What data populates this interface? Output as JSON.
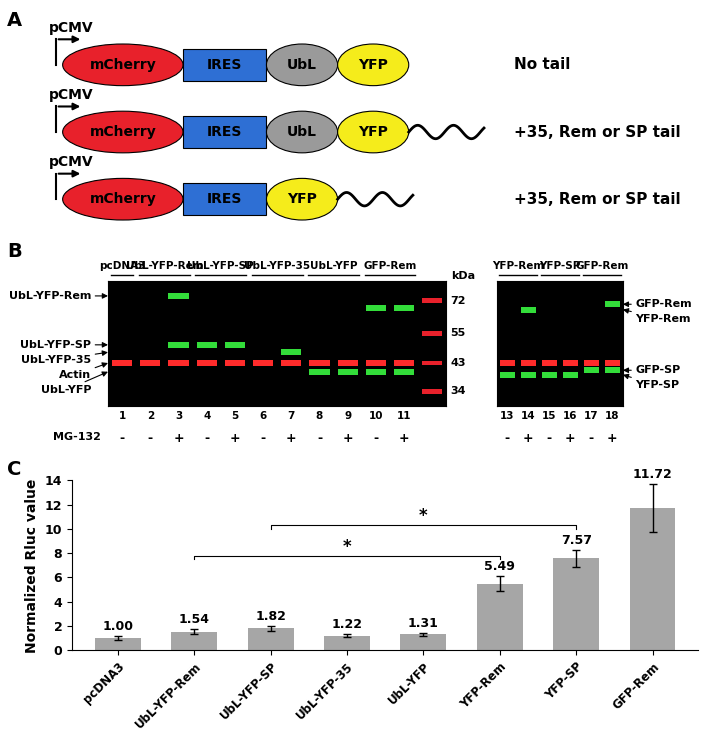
{
  "panel_a": {
    "label": "A",
    "constructs": [
      {
        "promoter": "pCMV",
        "elements": [
          {
            "name": "mCherry",
            "shape": "ellipse",
            "color": "#e8212b"
          },
          {
            "name": "IRES",
            "shape": "box",
            "color": "#2e6fd4"
          },
          {
            "name": "UbL",
            "shape": "ellipse",
            "color": "#9a9a9a"
          },
          {
            "name": "YFP",
            "shape": "ellipse",
            "color": "#f5ec1b"
          }
        ],
        "tail": false,
        "note": "No tail"
      },
      {
        "promoter": "pCMV",
        "elements": [
          {
            "name": "mCherry",
            "shape": "ellipse",
            "color": "#e8212b"
          },
          {
            "name": "IRES",
            "shape": "box",
            "color": "#2e6fd4"
          },
          {
            "name": "UbL",
            "shape": "ellipse",
            "color": "#9a9a9a"
          },
          {
            "name": "YFP",
            "shape": "ellipse",
            "color": "#f5ec1b"
          }
        ],
        "tail": true,
        "note": "+35, Rem or SP tail"
      },
      {
        "promoter": "pCMV",
        "elements": [
          {
            "name": "mCherry",
            "shape": "ellipse",
            "color": "#e8212b"
          },
          {
            "name": "IRES",
            "shape": "box",
            "color": "#2e6fd4"
          },
          {
            "name": "YFP",
            "shape": "ellipse",
            "color": "#f5ec1b"
          }
        ],
        "tail": true,
        "note": "+35, Rem or SP tail"
      }
    ]
  },
  "panel_b": {
    "label": "B",
    "mg132_label": "MG-132",
    "blots": [
      {
        "lanes": [
          [
            1,
            "-"
          ],
          [
            2,
            "-"
          ],
          [
            3,
            "+"
          ],
          [
            4,
            "-"
          ],
          [
            5,
            "+"
          ],
          [
            6,
            "-"
          ],
          [
            7,
            "+"
          ],
          [
            8,
            "-"
          ],
          [
            9,
            "+"
          ],
          [
            10,
            "-"
          ],
          [
            11,
            "+"
          ]
        ],
        "groups": [
          {
            "label": "pcDNA3",
            "lanes": [
              1
            ]
          },
          {
            "label": "UbL-YFP-Rem",
            "lanes": [
              2,
              3
            ]
          },
          {
            "label": "UbL-YFP-SP",
            "lanes": [
              4,
              5
            ]
          },
          {
            "label": "UbL-YFP-35",
            "lanes": [
              6,
              7
            ]
          },
          {
            "label": "UbL-YFP",
            "lanes": [
              8,
              9
            ]
          },
          {
            "label": "GFP-Rem",
            "lanes": [
              10,
              11
            ]
          }
        ],
        "kda_range": [
          30,
          85
        ],
        "markers": [
          72,
          55,
          43,
          34
        ],
        "marker_unit": "kDa",
        "marker_color": "#e8212b",
        "bands": [
          {
            "color": "#ff2b2b",
            "positions": [
              [
                1,
                43
              ],
              [
                2,
                43
              ],
              [
                3,
                43
              ],
              [
                4,
                43
              ],
              [
                5,
                43
              ],
              [
                6,
                43
              ],
              [
                7,
                43
              ],
              [
                8,
                43
              ],
              [
                9,
                43
              ],
              [
                10,
                43
              ],
              [
                11,
                43
              ]
            ]
          },
          {
            "color": "#33dd3a",
            "positions": [
              [
                3,
                75
              ],
              [
                3,
                50
              ],
              [
                4,
                50
              ],
              [
                5,
                50
              ],
              [
                7,
                47
              ],
              [
                8,
                40
              ],
              [
                9,
                40
              ],
              [
                10,
                68
              ],
              [
                10,
                40
              ],
              [
                11,
                68
              ],
              [
                11,
                40
              ]
            ]
          }
        ],
        "band_labels": [
          {
            "text": "UbL-YFP-Rem",
            "kda": 75,
            "side": "left"
          },
          {
            "text": "UbL-YFP-SP",
            "kda": 50,
            "side": "left"
          },
          {
            "text": "UbL-YFP-35",
            "kda": 47,
            "side": "left"
          },
          {
            "text": "Actin",
            "kda": 43,
            "side": "left"
          },
          {
            "text": "UbL-YFP",
            "kda": 40,
            "side": "left"
          }
        ]
      },
      {
        "lanes": [
          [
            13,
            "-"
          ],
          [
            14,
            "+"
          ],
          [
            15,
            "-"
          ],
          [
            16,
            "+"
          ],
          [
            17,
            "-"
          ],
          [
            18,
            "+"
          ]
        ],
        "groups": [
          {
            "label": "YFP-Rem",
            "lanes": [
              13,
              14
            ]
          },
          {
            "label": "YFP-SP",
            "lanes": [
              15,
              16
            ]
          },
          {
            "label": "GFP-Rem",
            "lanes": [
              17,
              18
            ]
          }
        ],
        "kda_range": [
          30,
          85
        ],
        "bands": [
          {
            "color": "#ff2b2b",
            "positions": [
              [
                13,
                43
              ],
              [
                14,
                43
              ],
              [
                15,
                43
              ],
              [
                16,
                43
              ],
              [
                17,
                43
              ],
              [
                18,
                43
              ]
            ]
          },
          {
            "color": "#33dd3a",
            "positions": [
              [
                13,
                39
              ],
              [
                14,
                67
              ],
              [
                14,
                39
              ],
              [
                15,
                39
              ],
              [
                16,
                39
              ],
              [
                17,
                40.5
              ],
              [
                18,
                70
              ],
              [
                18,
                40.5
              ]
            ]
          }
        ],
        "band_labels": [
          {
            "text": "GFP-Rem",
            "kda": 70,
            "side": "right"
          },
          {
            "text": "YFP-Rem",
            "kda": 67,
            "side": "right"
          },
          {
            "text": "GFP-SP",
            "kda": 40.5,
            "side": "right"
          },
          {
            "text": "YFP-SP",
            "kda": 39,
            "side": "right"
          }
        ]
      }
    ]
  },
  "panel_c_label": "C",
  "chart_data": {
    "type": "bar",
    "y_label": "Normalized Rluc value",
    "categories": [
      "pcDNA3",
      "UbL-YFP-Rem",
      "UbL-YFP-SP",
      "UbL-YFP-35",
      "UbL-YFP",
      "YFP-Rem",
      "YFP-SP",
      "GFP-Rem"
    ],
    "values": [
      1.0,
      1.54,
      1.82,
      1.22,
      1.31,
      5.49,
      7.57,
      11.72
    ],
    "value_labels": [
      "1.00",
      "1.54",
      "1.82",
      "1.22",
      "1.31",
      "5.49",
      "7.57",
      "11.72"
    ],
    "errors": [
      0.15,
      0.18,
      0.2,
      0.12,
      0.15,
      0.6,
      0.7,
      2.0
    ],
    "color": "#a6a6a6",
    "data_labels": true,
    "grid": false,
    "ylim": [
      0,
      14
    ],
    "yticks": [
      0,
      2,
      4,
      6,
      8,
      10,
      12,
      14
    ],
    "comparisons": [
      {
        "from": "UbL-YFP-SP",
        "to": "YFP-SP",
        "y": 10.3,
        "label": "*"
      },
      {
        "from": "UbL-YFP-Rem",
        "to": "YFP-Rem",
        "y": 7.8,
        "label": "*"
      }
    ]
  }
}
